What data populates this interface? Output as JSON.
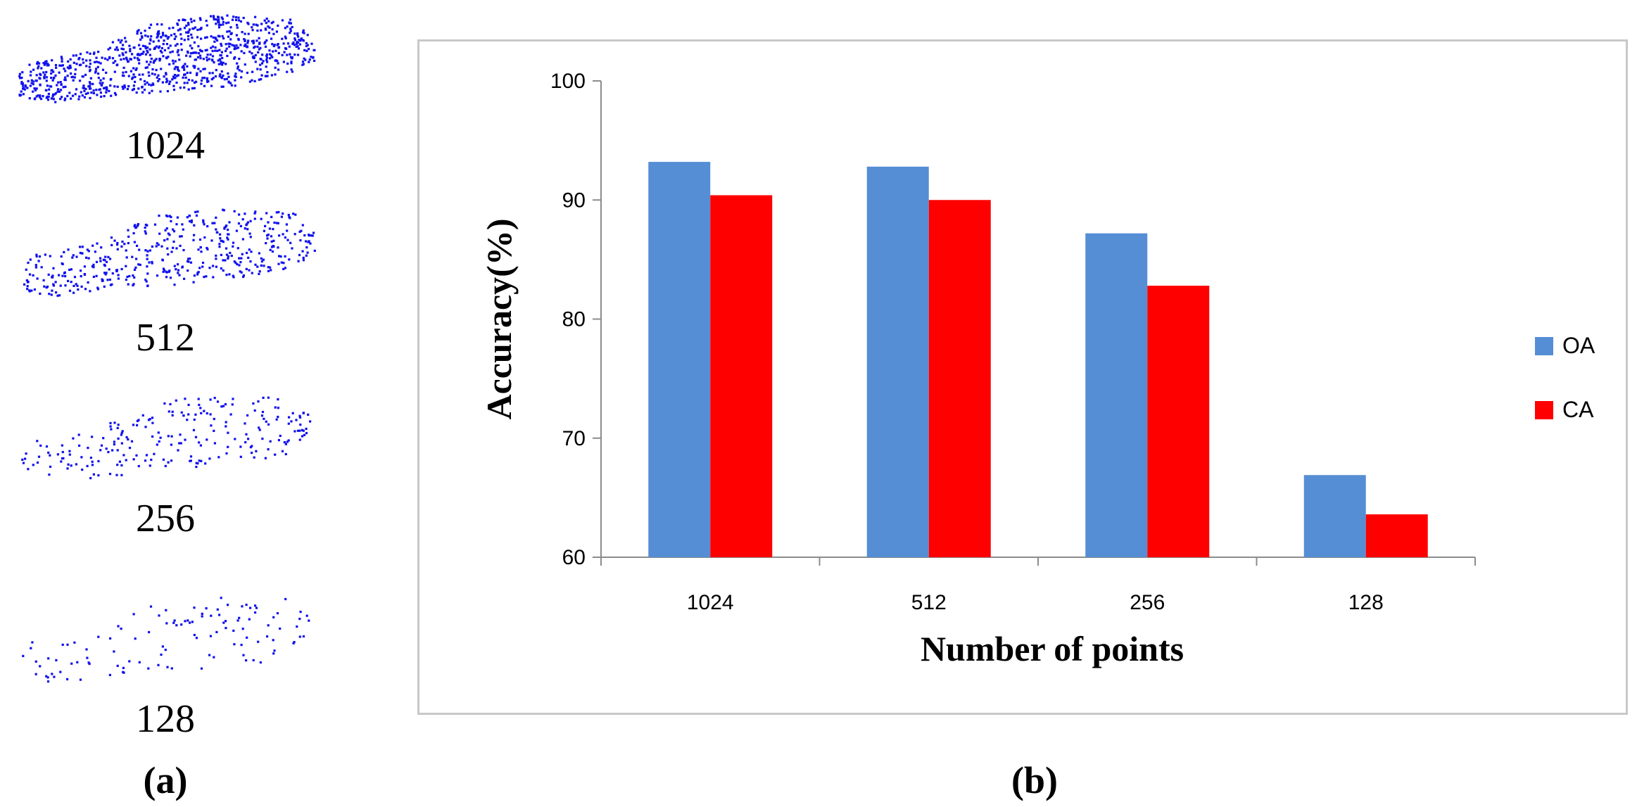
{
  "panel_a": {
    "point_color": "#1010ee",
    "items": [
      {
        "label": "1024",
        "count": 1024
      },
      {
        "label": "512",
        "count": 512
      },
      {
        "label": "256",
        "count": 256
      },
      {
        "label": "128",
        "count": 128
      }
    ],
    "caption": "(a)"
  },
  "panel_b": {
    "caption": "(b)"
  },
  "chart_data": {
    "type": "bar",
    "categories": [
      "1024",
      "512",
      "256",
      "128"
    ],
    "series": [
      {
        "name": "OA",
        "color": "#558ed5",
        "values": [
          93.2,
          92.8,
          87.2,
          66.9
        ]
      },
      {
        "name": "CA",
        "color": "#ff0000",
        "values": [
          90.4,
          90.0,
          82.8,
          63.6
        ]
      }
    ],
    "xlabel": "Number  of points",
    "ylabel": "Accuracy(%)",
    "ylim": [
      60,
      100
    ],
    "yticks": [
      "60",
      "70",
      "80",
      "90",
      "100"
    ],
    "grid": false,
    "legend": "right"
  }
}
